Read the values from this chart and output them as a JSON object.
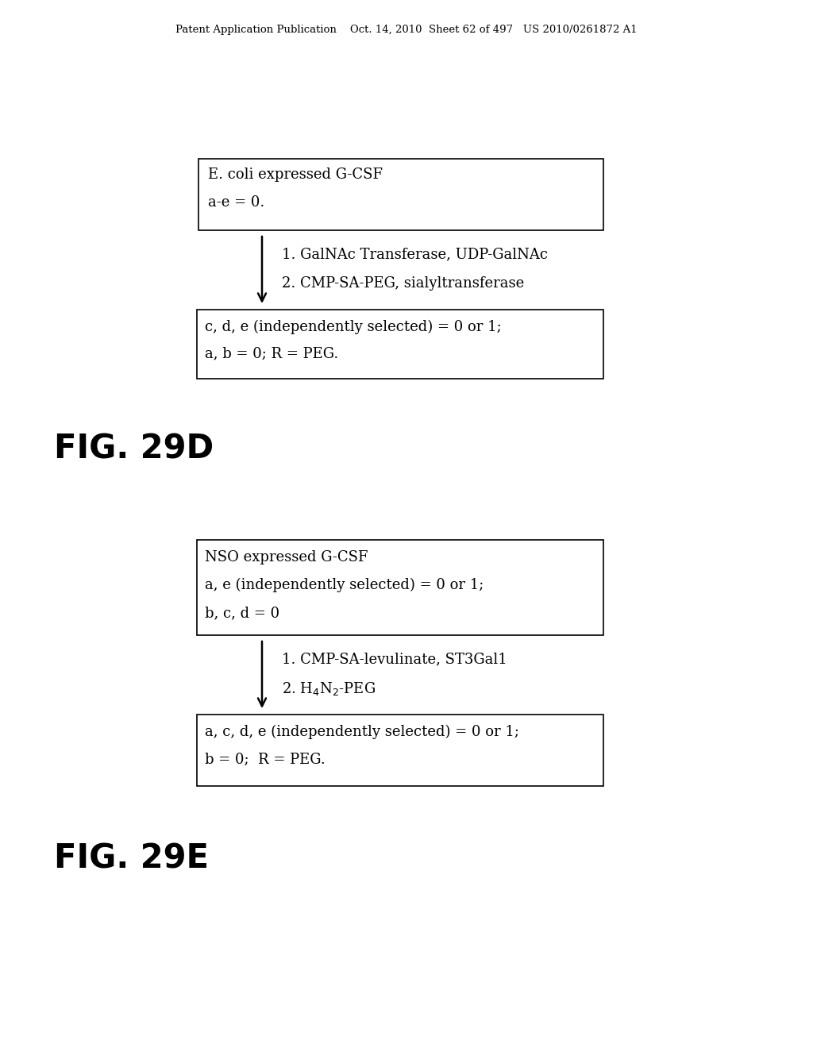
{
  "background_color": "#ffffff",
  "header_text": "Patent Application Publication    Oct. 14, 2010  Sheet 62 of 497   US 2010/0261872 A1",
  "header_fontsize": 9.5,
  "fig29d_label": "FIG. 29D",
  "fig29d_fontsize": 30,
  "fig29e_label": "FIG. 29E",
  "fig29e_fontsize": 30,
  "box1_line1": "E. coli expressed G-CSF",
  "box1_line2": "a-e = 0.",
  "step1_line1": "1. GalNAc Transferase, UDP-GalNAc",
  "step1_line2": "2. CMP-SA-PEG, sialyltransferase",
  "box2_line1": "c, d, e (independently selected) = 0 or 1;",
  "box2_line2": "a, b = 0; R = PEG.",
  "box3_line1": "NSO expressed G-CSF",
  "box3_line2": "a, e (independently selected) = 0 or 1;",
  "box3_line3": "b, c, d = 0",
  "step2_line1": "1. CMP-SA-levulinate, ST3Gal1",
  "step2_line2": "2. H$_4$N$_2$-PEG",
  "box4_line1": "a, c, d, e (independently selected) = 0 or 1;",
  "box4_line2": "b = 0;  R = PEG.",
  "text_fontsize": 13,
  "box_edge_color": "#000000",
  "box_face_color": "#ffffff",
  "text_color": "#000000",
  "arrow_color": "#000000"
}
